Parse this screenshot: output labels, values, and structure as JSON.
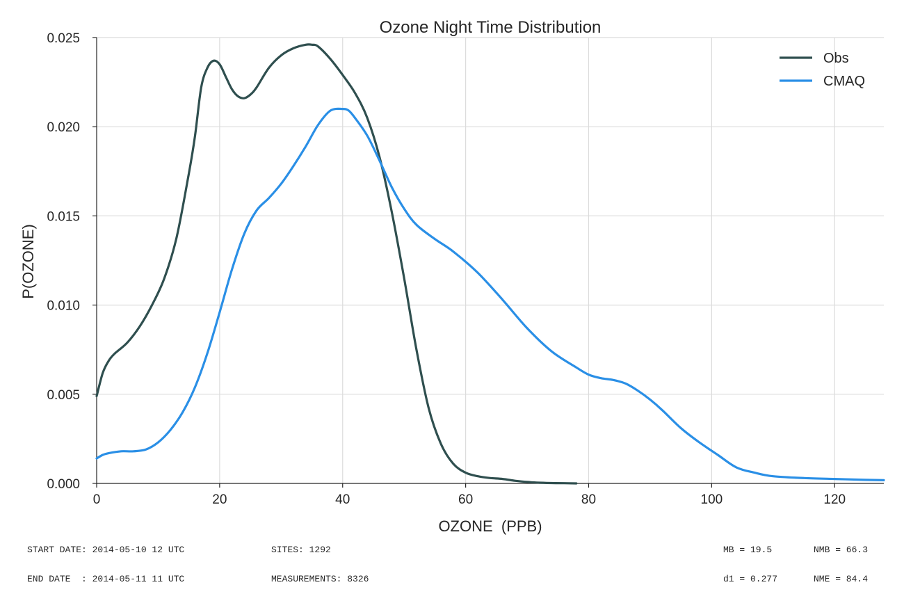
{
  "chart_data": {
    "type": "line",
    "title": "Ozone Night Time Distribution",
    "xlabel": "OZONE  (PPB)",
    "ylabel": "P(OZONE)",
    "xlim": [
      0,
      128
    ],
    "ylim": [
      0,
      0.025
    ],
    "xticks": [
      0,
      20,
      40,
      60,
      80,
      100,
      120
    ],
    "xtick_labels": [
      "0",
      "20",
      "40",
      "60",
      "80",
      "100",
      "120"
    ],
    "yticks": [
      0,
      0.005,
      0.01,
      0.015,
      0.02,
      0.025
    ],
    "ytick_labels": [
      "0.000",
      "0.005",
      "0.010",
      "0.015",
      "0.020",
      "0.025"
    ],
    "grid": true,
    "legend_position": "top-right",
    "series": [
      {
        "name": "Obs",
        "color": "#2f4f4f",
        "x": [
          0,
          1,
          2,
          3,
          5,
          7,
          9,
          11,
          13,
          15,
          16,
          17,
          18,
          19,
          20,
          21,
          22,
          23,
          24,
          25,
          26,
          28,
          30,
          32,
          34,
          35,
          36,
          38,
          40,
          42,
          44,
          46,
          48,
          50,
          52,
          54,
          56,
          58,
          60,
          62,
          64,
          66,
          68,
          70,
          72,
          74,
          76,
          78
        ],
        "y": [
          0.0049,
          0.0062,
          0.0069,
          0.0073,
          0.0079,
          0.0088,
          0.01,
          0.0115,
          0.0138,
          0.0174,
          0.0195,
          0.0222,
          0.0233,
          0.0237,
          0.0235,
          0.0228,
          0.0221,
          0.0217,
          0.0216,
          0.0218,
          0.0222,
          0.0233,
          0.024,
          0.0244,
          0.0246,
          0.0246,
          0.0245,
          0.0238,
          0.0229,
          0.0219,
          0.0205,
          0.0183,
          0.0152,
          0.0115,
          0.0075,
          0.0042,
          0.0022,
          0.0011,
          0.0006,
          0.0004,
          0.0003,
          0.00025,
          0.00015,
          8e-05,
          4e-05,
          2e-05,
          1e-05,
          0.0
        ]
      },
      {
        "name": "CMAQ",
        "color": "#2a8fe6",
        "x": [
          0,
          1,
          2,
          4,
          6,
          8,
          10,
          12,
          14,
          16,
          18,
          20,
          22,
          24,
          26,
          28,
          30,
          32,
          34,
          36,
          38,
          40,
          41,
          42,
          44,
          46,
          48,
          50,
          52,
          55,
          58,
          62,
          66,
          70,
          74,
          78,
          80,
          82,
          84,
          86,
          88,
          90,
          92,
          95,
          98,
          101,
          104,
          107,
          110,
          115,
          120,
          125,
          128
        ],
        "y": [
          0.0014,
          0.0016,
          0.0017,
          0.0018,
          0.0018,
          0.0019,
          0.0023,
          0.003,
          0.004,
          0.0054,
          0.0073,
          0.0096,
          0.012,
          0.014,
          0.0153,
          0.016,
          0.0168,
          0.0178,
          0.0189,
          0.0201,
          0.0209,
          0.021,
          0.0209,
          0.0205,
          0.0195,
          0.0181,
          0.0166,
          0.0154,
          0.0145,
          0.0137,
          0.013,
          0.0118,
          0.0103,
          0.0087,
          0.0074,
          0.0065,
          0.0061,
          0.0059,
          0.0058,
          0.0056,
          0.0052,
          0.0047,
          0.0041,
          0.0031,
          0.0023,
          0.0016,
          0.0009,
          0.0006,
          0.0004,
          0.0003,
          0.00025,
          0.0002,
          0.00018
        ]
      }
    ]
  },
  "footer": {
    "start_date": "START DATE: 2014-05-10 12 UTC",
    "end_date": "END DATE  : 2014-05-11 11 UTC",
    "sites": "SITES: 1292",
    "measurements": "MEASUREMENTS: 8326",
    "mb": "MB = 19.5",
    "nmb": "NMB = 66.3",
    "d1": "d1 = 0.277",
    "nme": "NME = 84.4"
  }
}
